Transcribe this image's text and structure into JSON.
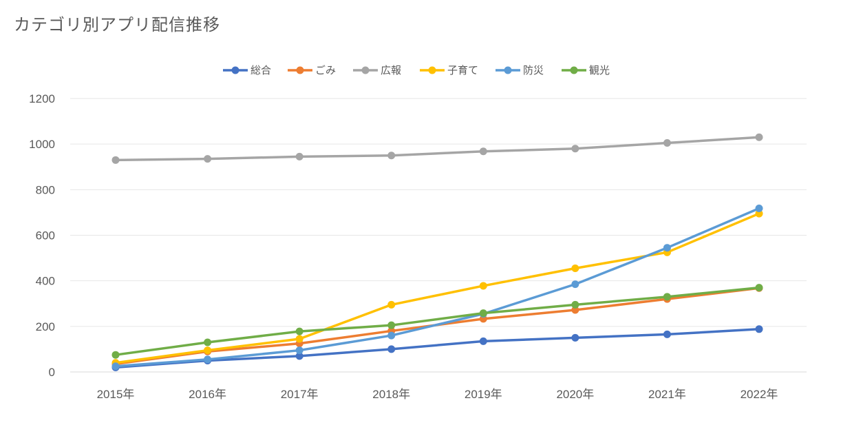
{
  "title": "カテゴリ別アプリ配信推移",
  "chart_data": {
    "type": "line",
    "title": "カテゴリ別アプリ配信推移",
    "xlabel": "",
    "ylabel": "",
    "categories": [
      "2015年",
      "2016年",
      "2017年",
      "2018年",
      "2019年",
      "2020年",
      "2021年",
      "2022年"
    ],
    "ylim": [
      0,
      1200
    ],
    "yticks": [
      0,
      200,
      400,
      600,
      800,
      1000,
      1200
    ],
    "grid": true,
    "legend_position": "top",
    "series": [
      {
        "name": "総合",
        "color": "#4472C4",
        "values": [
          20,
          50,
          70,
          100,
          135,
          150,
          165,
          188
        ]
      },
      {
        "name": "ごみ",
        "color": "#ED7D31",
        "values": [
          35,
          90,
          125,
          180,
          233,
          272,
          320,
          368
        ]
      },
      {
        "name": "広報",
        "color": "#A5A5A5",
        "values": [
          930,
          935,
          945,
          950,
          968,
          980,
          1005,
          1030
        ]
      },
      {
        "name": "子育て",
        "color": "#FFC000",
        "values": [
          40,
          95,
          145,
          295,
          378,
          455,
          525,
          695
        ]
      },
      {
        "name": "防災",
        "color": "#5B9BD5",
        "values": [
          25,
          55,
          95,
          160,
          255,
          385,
          545,
          718
        ]
      },
      {
        "name": "観光",
        "color": "#70AD47",
        "values": [
          75,
          130,
          178,
          205,
          258,
          295,
          330,
          370
        ]
      }
    ]
  }
}
